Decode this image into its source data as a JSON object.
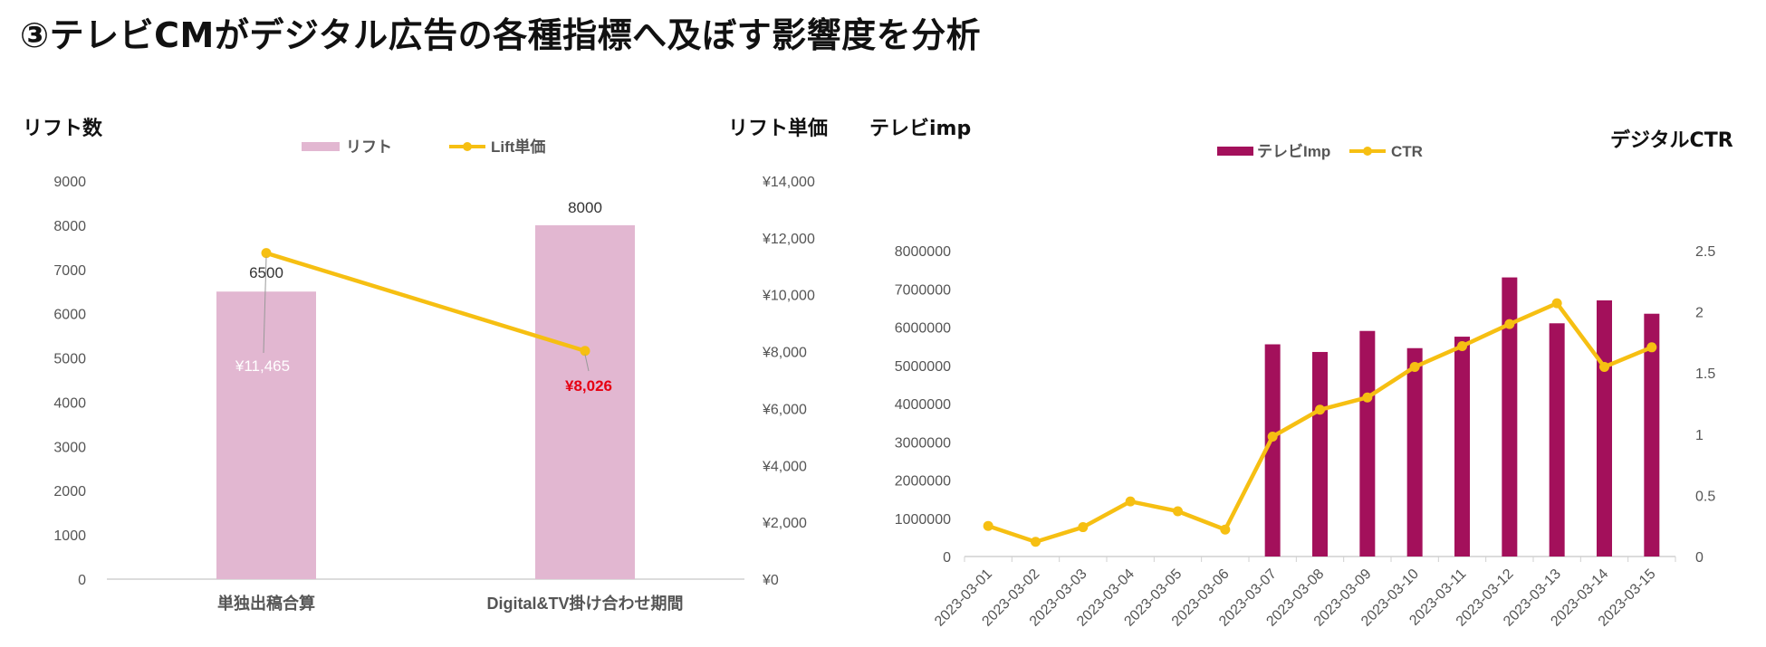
{
  "page_title": "③テレビCMがデジタル広告の各種指標へ及ぼす影響度を分析",
  "colors": {
    "bar_pink": "#e2b7d1",
    "line_yellow": "#f6bf12",
    "bar_magenta": "#a3105b",
    "highlight_red": "#e60012"
  },
  "chart_data": [
    {
      "type": "bar",
      "left_axis_title": "リフト数",
      "right_axis_title": "リフト単価",
      "categories": [
        "単独出稿合算",
        "Digital&TV掛け合わせ期間"
      ],
      "series": [
        {
          "name": "リフト",
          "type": "bar",
          "axis": "left",
          "values": [
            6500,
            8000
          ],
          "labels": [
            "6500",
            "8000"
          ]
        },
        {
          "name": "Lift単価",
          "type": "line",
          "axis": "right",
          "values": [
            11465,
            8026
          ],
          "labels": [
            "¥11,465",
            "¥8,026"
          ]
        }
      ],
      "ylim_left": [
        0,
        9000
      ],
      "left_ticks": [
        "0",
        "1000",
        "2000",
        "3000",
        "4000",
        "5000",
        "6000",
        "7000",
        "8000",
        "9000"
      ],
      "ylim_right": [
        0,
        14000
      ],
      "right_ticks": [
        "¥0",
        "¥2,000",
        "¥4,000",
        "¥6,000",
        "¥8,000",
        "¥10,000",
        "¥12,000",
        "¥14,000"
      ],
      "legend_position": "top-center",
      "grid": false
    },
    {
      "type": "bar",
      "left_axis_title": "テレビimp",
      "right_axis_title": "デジタルCTR",
      "x": [
        "2023-03-01",
        "2023-03-02",
        "2023-03-03",
        "2023-03-04",
        "2023-03-05",
        "2023-03-06",
        "2023-03-07",
        "2023-03-08",
        "2023-03-09",
        "2023-03-10",
        "2023-03-11",
        "2023-03-12",
        "2023-03-13",
        "2023-03-14",
        "2023-03-15"
      ],
      "series": [
        {
          "name": "テレビImp",
          "type": "bar",
          "axis": "left",
          "values": [
            0,
            0,
            0,
            0,
            0,
            0,
            5550000,
            5350000,
            5900000,
            5450000,
            5750000,
            7300000,
            6100000,
            6700000,
            6350000
          ]
        },
        {
          "name": "CTR",
          "type": "line",
          "axis": "right",
          "values": [
            0.25,
            0.12,
            0.24,
            0.45,
            0.37,
            0.22,
            0.98,
            1.2,
            1.3,
            1.55,
            1.72,
            1.9,
            2.07,
            1.55,
            1.71
          ]
        }
      ],
      "ylim_left": [
        0,
        8000000
      ],
      "left_ticks": [
        "0",
        "1000000",
        "2000000",
        "3000000",
        "4000000",
        "5000000",
        "6000000",
        "7000000",
        "8000000"
      ],
      "ylim_right": [
        0,
        2.5
      ],
      "right_ticks": [
        "0",
        "0.5",
        "1",
        "1.5",
        "2",
        "2.5"
      ],
      "legend_position": "top-center",
      "grid": false
    }
  ]
}
